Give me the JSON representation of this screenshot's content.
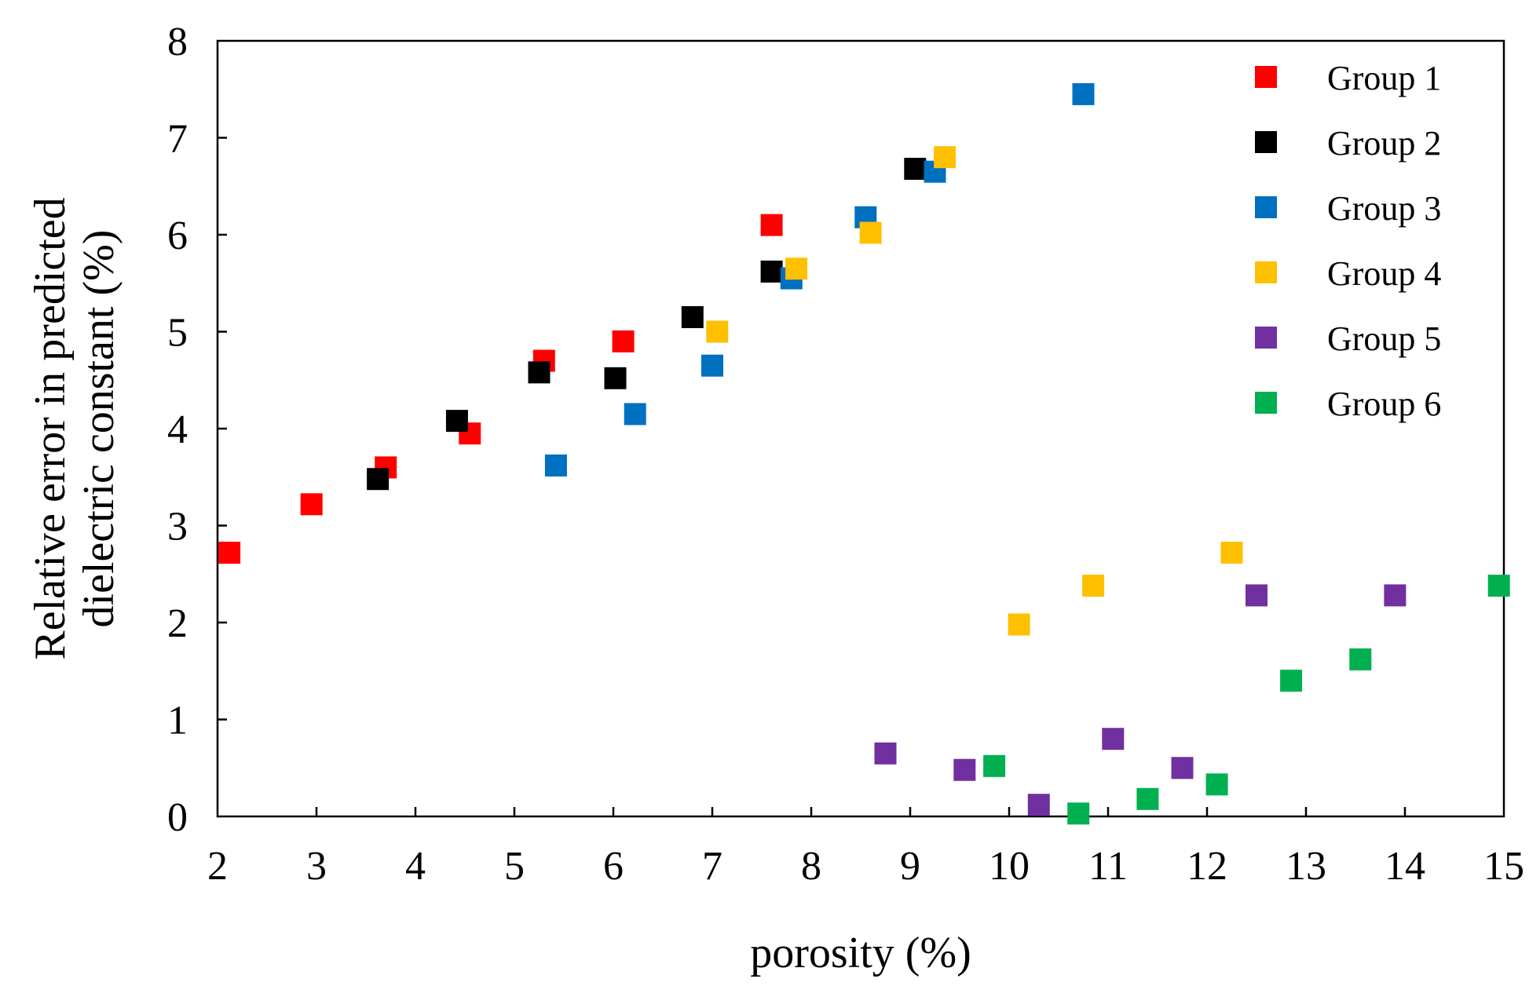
{
  "chart_data": {
    "type": "scatter",
    "title": "",
    "xlabel": "porosity (%)",
    "ylabel_line1": "Relative error in predicted",
    "ylabel_line2": "dielectric constant (%)",
    "xlim": [
      2,
      15
    ],
    "ylim": [
      0,
      8
    ],
    "xticks": [
      "2",
      "3",
      "4",
      "5",
      "6",
      "7",
      "8",
      "9",
      "10",
      "11",
      "12",
      "13",
      "14",
      "15"
    ],
    "yticks": [
      "0",
      "1",
      "2",
      "3",
      "4",
      "5",
      "6",
      "7",
      "8"
    ],
    "grid": false,
    "legend_position": "top-right",
    "series": [
      {
        "name": "Group 1",
        "color": "#ff0000",
        "x": [
          2.12,
          2.95,
          3.7,
          4.55,
          5.3,
          6.1,
          7.6
        ],
        "y": [
          2.72,
          3.22,
          3.6,
          3.95,
          4.7,
          4.9,
          6.1
        ]
      },
      {
        "name": "Group 2",
        "color": "#000000",
        "x": [
          3.62,
          4.42,
          5.25,
          6.02,
          6.8,
          7.6,
          9.05
        ],
        "y": [
          3.48,
          4.08,
          4.58,
          4.52,
          5.15,
          5.62,
          6.68
        ]
      },
      {
        "name": "Group 3",
        "color": "#0070c0",
        "x": [
          5.42,
          6.22,
          7.0,
          7.8,
          8.55,
          9.25,
          10.75
        ],
        "y": [
          3.62,
          4.15,
          4.65,
          5.55,
          6.18,
          6.65,
          7.45
        ]
      },
      {
        "name": "Group 4",
        "color": "#ffc000",
        "x": [
          7.05,
          7.85,
          8.6,
          9.35,
          10.1,
          10.85,
          12.25
        ],
        "y": [
          5.0,
          5.65,
          6.02,
          6.8,
          1.98,
          2.38,
          2.72
        ]
      },
      {
        "name": "Group 5",
        "color": "#7030a0",
        "x": [
          8.75,
          9.55,
          10.3,
          11.05,
          11.75,
          12.5,
          13.9
        ],
        "y": [
          0.65,
          0.48,
          0.12,
          0.8,
          0.5,
          2.28,
          2.28
        ]
      },
      {
        "name": "Group 6",
        "color": "#00b050",
        "x": [
          9.85,
          10.7,
          11.4,
          12.1,
          12.85,
          13.55,
          14.95
        ],
        "y": [
          0.52,
          0.03,
          0.18,
          0.33,
          1.4,
          1.62,
          2.38
        ]
      }
    ]
  }
}
